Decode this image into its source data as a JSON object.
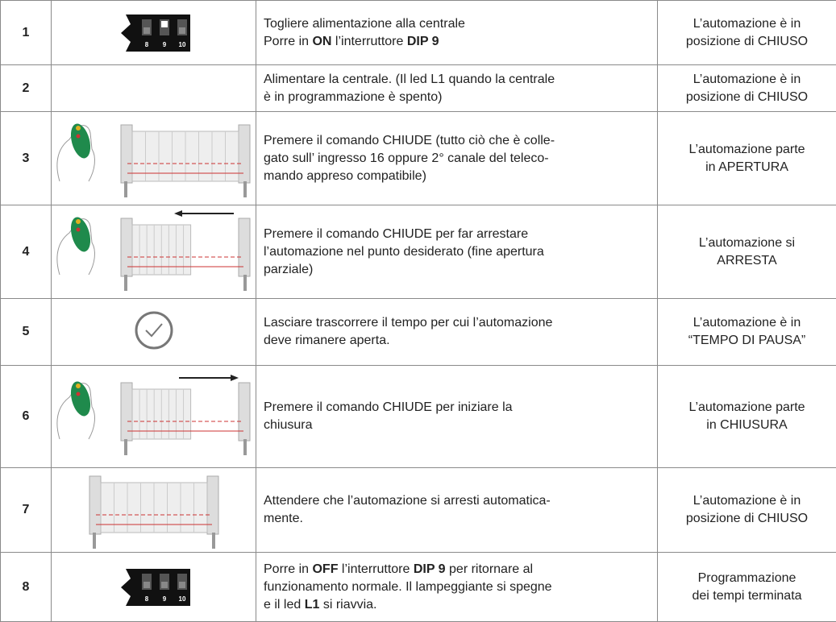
{
  "table": {
    "rows": [
      {
        "number": "1",
        "dip_labels": [
          "8",
          "9",
          "10"
        ],
        "description": [
          [
            {
              "text": "Togliere alimentazione alla centrale",
              "bold": false
            }
          ],
          [
            {
              "text": "Porre in ",
              "bold": false
            },
            {
              "text": "ON",
              "bold": true
            },
            {
              "text": " l’interruttore ",
              "bold": false
            },
            {
              "text": "DIP 9",
              "bold": true
            }
          ]
        ],
        "result": [
          "L’automazione è in",
          "posizione di CHIUSO"
        ]
      },
      {
        "number": "2",
        "description": [
          [
            {
              "text": "Alimentare la centrale. (Il led L1 quando la centrale",
              "bold": false
            }
          ],
          [
            {
              "text": "è in programmazione è spento)",
              "bold": false
            }
          ]
        ],
        "result": [
          "L’automazione è in",
          "posizione di CHIUSO"
        ]
      },
      {
        "number": "3",
        "description": [
          [
            {
              "text": "Premere il comando CHIUDE (tutto ciò che è colle-",
              "bold": false
            }
          ],
          [
            {
              "text": "gato sull’ ingresso 16 oppure 2° canale del teleco-",
              "bold": false
            }
          ],
          [
            {
              "text": "mando appreso compatibile)",
              "bold": false
            }
          ]
        ],
        "result": [
          "L’automazione parte",
          "in APERTURA"
        ]
      },
      {
        "number": "4",
        "description": [
          [
            {
              "text": "Premere il comando CHIUDE per far arrestare",
              "bold": false
            }
          ],
          [
            {
              "text": "l’automazione nel punto desiderato (fine apertura",
              "bold": false
            }
          ],
          [
            {
              "text": "parziale)",
              "bold": false
            }
          ]
        ],
        "result": [
          "L’automazione si",
          "ARRESTA"
        ]
      },
      {
        "number": "5",
        "description": [
          [
            {
              "text": "Lasciare trascorrere il tempo per cui l’automazione",
              "bold": false
            }
          ],
          [
            {
              "text": "deve rimanere aperta.",
              "bold": false
            }
          ]
        ],
        "result": [
          "L’automazione è in",
          "“TEMPO DI PAUSA”"
        ]
      },
      {
        "number": "6",
        "description": [
          [
            {
              "text": "Premere il comando CHIUDE per iniziare la",
              "bold": false
            }
          ],
          [
            {
              "text": "chiusura",
              "bold": false
            }
          ]
        ],
        "result": [
          "L’automazione parte",
          "in CHIUSURA"
        ]
      },
      {
        "number": "7",
        "description": [
          [
            {
              "text": "Attendere che l’automazione si arresti automatica-",
              "bold": false
            }
          ],
          [
            {
              "text": "mente.",
              "bold": false
            }
          ]
        ],
        "result": [
          "L’automazione è in",
          "posizione di CHIUSO"
        ]
      },
      {
        "number": "8",
        "dip_labels": [
          "8",
          "9",
          "10"
        ],
        "description": [
          [
            {
              "text": "Porre in ",
              "bold": false
            },
            {
              "text": "OFF",
              "bold": true
            },
            {
              "text": " l’interruttore ",
              "bold": false
            },
            {
              "text": "DIP 9",
              "bold": true
            },
            {
              "text": " per ritornare al",
              "bold": false
            }
          ],
          [
            {
              "text": "funzionamento normale. Il lampeggiante si spegne",
              "bold": false
            }
          ],
          [
            {
              "text": "e il led ",
              "bold": false
            },
            {
              "text": "L1",
              "bold": true
            },
            {
              "text": " si riavvia.",
              "bold": false
            }
          ]
        ],
        "result": [
          "Programmazione",
          "dei tempi terminata"
        ]
      }
    ]
  }
}
